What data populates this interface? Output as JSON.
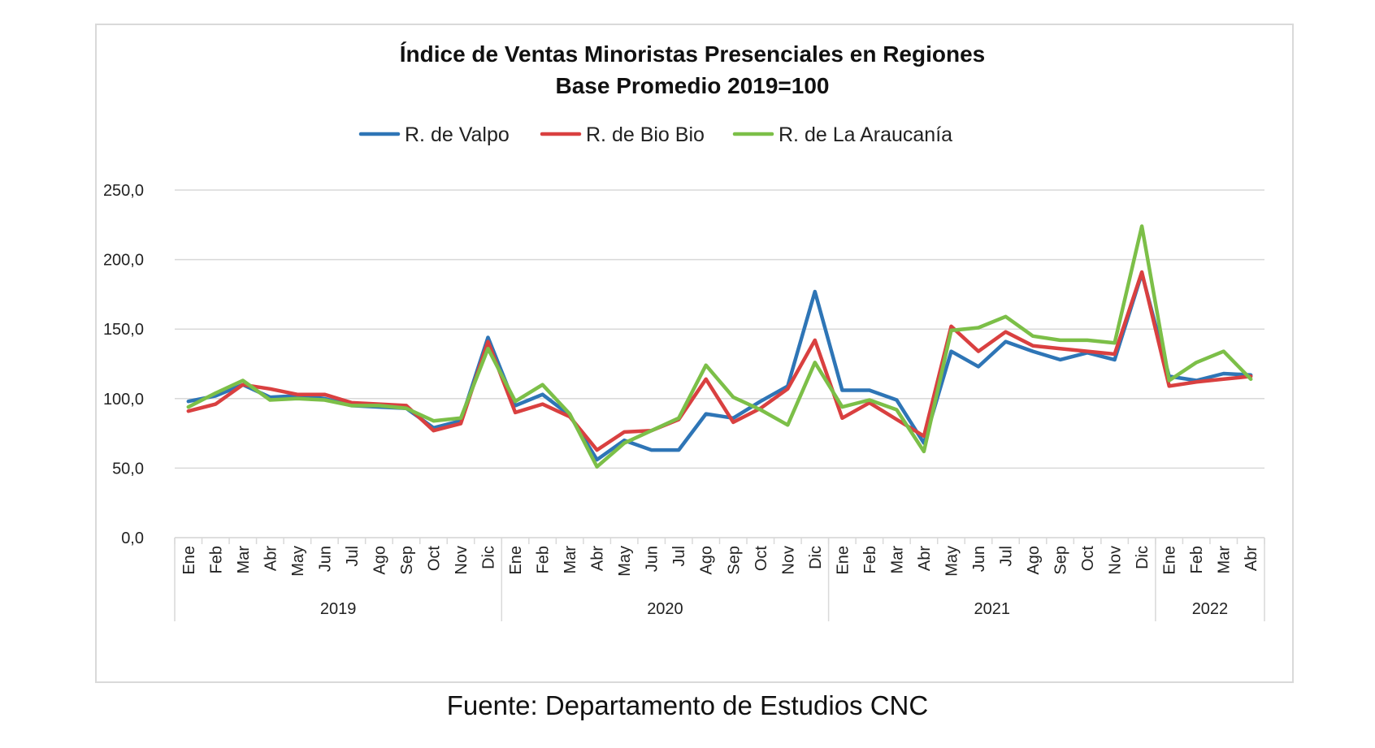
{
  "chart_data": {
    "type": "line",
    "title": "Índice de Ventas Minoristas Presenciales en Regiones",
    "subtitle": "Base Promedio 2019=100",
    "xlabel": "",
    "ylabel": "",
    "ylim": [
      0,
      250
    ],
    "yticks": [
      "0,0",
      "50,0",
      "100,0",
      "150,0",
      "200,0",
      "250,0"
    ],
    "ytick_values": [
      0,
      50,
      100,
      150,
      200,
      250
    ],
    "grid": true,
    "legend_position": "top",
    "categories": [
      "Ene",
      "Feb",
      "Mar",
      "Abr",
      "May",
      "Jun",
      "Jul",
      "Ago",
      "Sep",
      "Oct",
      "Nov",
      "Dic",
      "Ene",
      "Feb",
      "Mar",
      "Abr",
      "May",
      "Jun",
      "Jul",
      "Ago",
      "Sep",
      "Oct",
      "Nov",
      "Dic",
      "Ene",
      "Feb",
      "Mar",
      "Abr",
      "May",
      "Jun",
      "Jul",
      "Ago",
      "Sep",
      "Oct",
      "Nov",
      "Dic",
      "Ene",
      "Feb",
      "Mar",
      "Abr"
    ],
    "year_groups": [
      {
        "label": "2019",
        "count": 12
      },
      {
        "label": "2020",
        "count": 12
      },
      {
        "label": "2021",
        "count": 12
      },
      {
        "label": "2022",
        "count": 4
      }
    ],
    "series": [
      {
        "name": "R. de Valpo",
        "color": "#2e75b6",
        "values": [
          98,
          102,
          110,
          101,
          102,
          100,
          95,
          94,
          93,
          79,
          84,
          144,
          95,
          103,
          88,
          56,
          70,
          63,
          63,
          89,
          86,
          98,
          109,
          177,
          106,
          106,
          99,
          68,
          134,
          123,
          141,
          134,
          128,
          133,
          128,
          190,
          116,
          113,
          118,
          117
        ]
      },
      {
        "name": "R. de Bio Bio",
        "color": "#d94040",
        "values": [
          91,
          96,
          110,
          107,
          103,
          103,
          97,
          96,
          95,
          77,
          82,
          141,
          90,
          96,
          87,
          63,
          76,
          77,
          85,
          114,
          83,
          93,
          107,
          142,
          86,
          97,
          85,
          73,
          152,
          134,
          148,
          138,
          136,
          134,
          132,
          191,
          109,
          112,
          114,
          116
        ]
      },
      {
        "name": "R. de La Araucanía",
        "color": "#7cbf48",
        "values": [
          94,
          104,
          113,
          99,
          100,
          99,
          95,
          95,
          93,
          84,
          86,
          136,
          98,
          110,
          89,
          51,
          68,
          77,
          86,
          124,
          101,
          92,
          81,
          126,
          94,
          99,
          92,
          62,
          149,
          151,
          159,
          145,
          142,
          142,
          140,
          224,
          113,
          126,
          134,
          114
        ]
      }
    ]
  },
  "source_note": "Fuente: Departamento de Estudios CNC"
}
